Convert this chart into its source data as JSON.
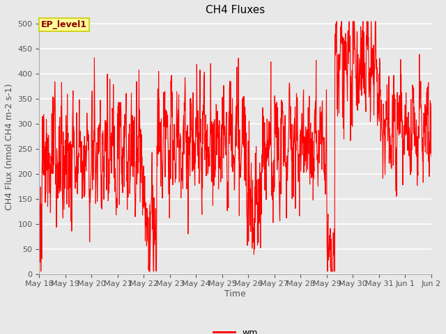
{
  "title": "CH4 Fluxes",
  "xlabel": "Time",
  "ylabel": "CH4 Flux (nmol CH4 m-2 s-1)",
  "ylim": [
    0,
    510
  ],
  "yticks": [
    0,
    50,
    100,
    150,
    200,
    250,
    300,
    350,
    400,
    450,
    500
  ],
  "legend_label": "wm",
  "line_color": "#ff0000",
  "line_width": 0.8,
  "fig_bg_color": "#e8e8e8",
  "plot_bg_color": "#e8e8e8",
  "title_fontsize": 11,
  "label_fontsize": 9,
  "tick_fontsize": 8,
  "annotation_text": "EP_level1",
  "annotation_bg": "#ffff99",
  "annotation_border": "#cccc00",
  "x_tick_labels": [
    "May 18",
    "May 19",
    "May 20",
    "May 21",
    "May 22",
    "May 23",
    "May 24",
    "May 25",
    "May 26",
    "May 27",
    "May 28",
    "May 29",
    "May 30",
    "May 31",
    "Jun 1",
    "Jun 2"
  ],
  "xlim": [
    0,
    15
  ]
}
